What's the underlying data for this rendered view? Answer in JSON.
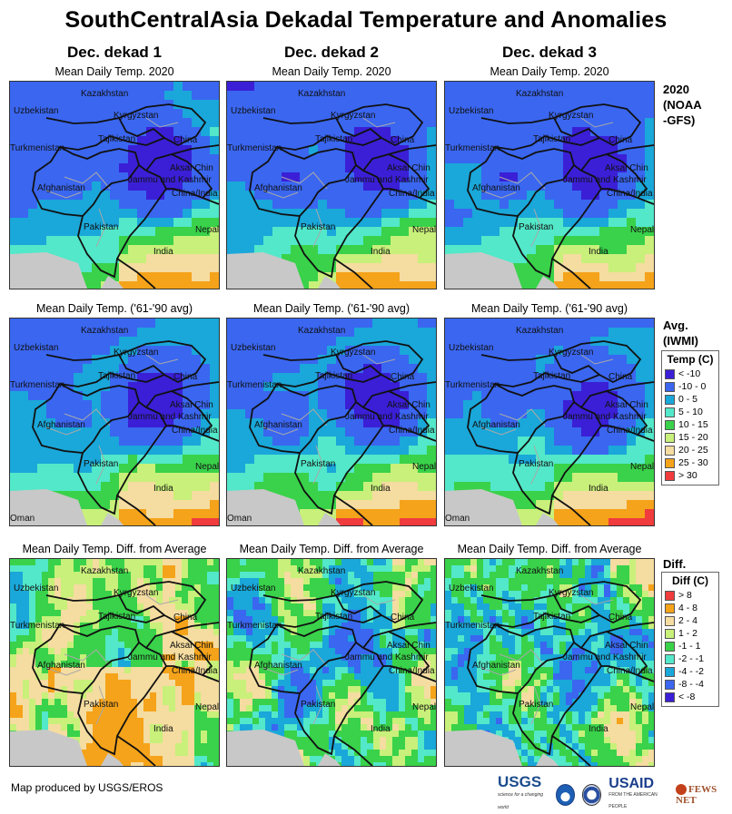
{
  "title": "SouthCentralAsia Dekadal Temperature and Anomalies",
  "columns": [
    "Dec. dekad 1",
    "Dec. dekad 2",
    "Dec. dekad 3"
  ],
  "row_titles": {
    "current": "Mean Daily Temp. 2020",
    "avg": "Mean Daily Temp. ('61-'90 avg)",
    "diff": "Mean Daily Temp. Diff. from Average"
  },
  "row_labels": {
    "current": [
      "2020",
      "(NOAA",
      "-GFS)"
    ],
    "avg": [
      "Avg.",
      "(IWMI)"
    ],
    "diff": [
      "Diff."
    ]
  },
  "map_labels": {
    "kazakhstan": "Kazakhstan",
    "uzbekistan": "Uzbekistan",
    "kyrgyzstan": "Kyrgyzstan",
    "tajikistan": "Tajikistan",
    "turkmenistan": "Turkmenistan",
    "china": "China",
    "aksai_chin": "Aksai Chin",
    "jammu": "Jammu and Kashmir",
    "afghanistan": "Afghanistan",
    "china_india": "China/India",
    "pakistan": "Pakistan",
    "nepal": "Nepal",
    "india": "India",
    "oman": "Oman"
  },
  "temp_legend": {
    "title": "Temp (C)",
    "items": [
      {
        "label": "< -10",
        "color": "#3a1fd6"
      },
      {
        "label": "-10 - 0",
        "color": "#3a66f0"
      },
      {
        "label": "0 - 5",
        "color": "#1aa7d9"
      },
      {
        "label": "5 - 10",
        "color": "#52e8c9"
      },
      {
        "label": "10 - 15",
        "color": "#39d24a"
      },
      {
        "label": "15 - 20",
        "color": "#c8f07a"
      },
      {
        "label": "20 - 25",
        "color": "#f5dca0"
      },
      {
        "label": "25 - 30",
        "color": "#f5a31a"
      },
      {
        "label": "> 30",
        "color": "#f03c3c"
      }
    ]
  },
  "diff_legend": {
    "title": "Diff (C)",
    "items": [
      {
        "label": "> 8",
        "color": "#f03c3c"
      },
      {
        "label": "4 - 8",
        "color": "#f5a31a"
      },
      {
        "label": "2 - 4",
        "color": "#f5dca0"
      },
      {
        "label": "1 - 2",
        "color": "#c8f07a"
      },
      {
        "label": "-1 - 1",
        "color": "#39d24a"
      },
      {
        "label": "-2 - -1",
        "color": "#52e8c9"
      },
      {
        "label": "-4 - -2",
        "color": "#1aa7d9"
      },
      {
        "label": "-8 - -4",
        "color": "#3a66f0"
      },
      {
        "label": "< -8",
        "color": "#3a1fd6"
      }
    ]
  },
  "credit": "Map produced by USGS/EROS",
  "logos": {
    "usgs": "USGS",
    "usgs_tagline": "science for a changing world",
    "usaid": "USAID",
    "usaid_tagline": "FROM THE AMERICAN PEOPLE",
    "fews": "FEWS NET"
  }
}
